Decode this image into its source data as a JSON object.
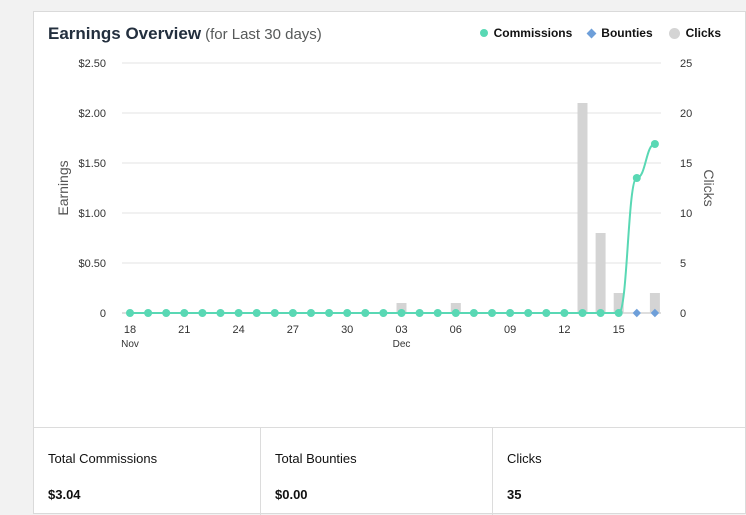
{
  "header": {
    "title": "Earnings Overview",
    "subtitle": "(for Last 30 days)"
  },
  "legend": {
    "commissions": "Commissions",
    "bounties": "Bounties",
    "clicks": "Clicks"
  },
  "chart_data": {
    "type": "line",
    "ylabel": "Earnings",
    "y2label": "Clicks",
    "ylim": [
      0,
      2.5
    ],
    "y2lim": [
      0,
      25
    ],
    "yticks": [
      "$2.50",
      "$2.00",
      "$1.50",
      "$1.00",
      "$0.50",
      "0"
    ],
    "y2ticks": [
      "25",
      "20",
      "15",
      "10",
      "5",
      "0"
    ],
    "xticks": [
      {
        "label": "18",
        "sub": "Nov"
      },
      {
        "label": "21",
        "sub": ""
      },
      {
        "label": "24",
        "sub": ""
      },
      {
        "label": "27",
        "sub": ""
      },
      {
        "label": "30",
        "sub": ""
      },
      {
        "label": "03",
        "sub": "Dec"
      },
      {
        "label": "06",
        "sub": ""
      },
      {
        "label": "09",
        "sub": ""
      },
      {
        "label": "12",
        "sub": ""
      },
      {
        "label": "15",
        "sub": ""
      }
    ],
    "grid": true,
    "series": [
      {
        "name": "Commissions",
        "color": "#59d8b4",
        "values": [
          0,
          0,
          0,
          0,
          0,
          0,
          0,
          0,
          0,
          0,
          0,
          0,
          0,
          0,
          0,
          0,
          0,
          0,
          0,
          0,
          0,
          0,
          0,
          0,
          0,
          0,
          0,
          0,
          1.35,
          1.69
        ]
      },
      {
        "name": "Bounties",
        "color": "#6e9fd9",
        "values": [
          0,
          0,
          0,
          0,
          0,
          0,
          0,
          0,
          0,
          0,
          0,
          0,
          0,
          0,
          0,
          0,
          0,
          0,
          0,
          0,
          0,
          0,
          0,
          0,
          0,
          0,
          0,
          0,
          0,
          0
        ]
      },
      {
        "name": "Clicks",
        "color": "#d4d4d4",
        "values": [
          0,
          0,
          0,
          0,
          0,
          0,
          0,
          0,
          0,
          0,
          0,
          0,
          0,
          0,
          0,
          1,
          0,
          0,
          1,
          0,
          0,
          0,
          0,
          0,
          0,
          21,
          8,
          2,
          0,
          2
        ]
      }
    ]
  },
  "stats": [
    {
      "label": "Total Commissions",
      "value": "$3.04"
    },
    {
      "label": "Total Bounties",
      "value": "$0.00"
    },
    {
      "label": "Clicks",
      "value": "35"
    }
  ]
}
